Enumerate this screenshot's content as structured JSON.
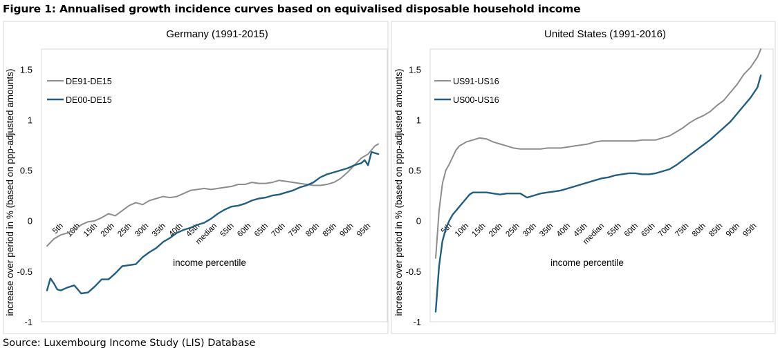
{
  "figure_title": "Figure 1: Annualised growth incidence curves based on equivalised disposable household income",
  "source": "Source: Luxembourg Income Study (LIS) Database",
  "colors": {
    "series_old": "#8c8c8c",
    "series_new": "#1f5f82",
    "frame": "#d9d9d9"
  },
  "chart_data": [
    {
      "type": "line",
      "title": "Germany (1991-2015)",
      "xlabel": "income percentile",
      "ylabel": "increase over period in % (based on ppp-adjusted amounts)",
      "ylim": [
        -1,
        1.7
      ],
      "yticks": [
        -1,
        -0.5,
        0,
        0.5,
        1,
        1.5
      ],
      "ytick_labels": [
        "-1",
        "-0.5",
        "0",
        "0.5",
        "1",
        "1.5"
      ],
      "xlim": [
        1,
        99
      ],
      "xticks": [
        5,
        10,
        15,
        20,
        25,
        30,
        35,
        40,
        45,
        50,
        55,
        60,
        65,
        70,
        75,
        80,
        85,
        90,
        95
      ],
      "xtick_labels": [
        "5th",
        "10th",
        "15th",
        "20th",
        "25th",
        "30th",
        "35th",
        "40th",
        "45th",
        "median",
        "55th",
        "60th",
        "65th",
        "70th",
        "75th",
        "80th",
        "85th",
        "90th",
        "95th"
      ],
      "legend": "top-left",
      "grid": false,
      "series": [
        {
          "name": "DE91-DE15",
          "color": "#8c8c8c",
          "points": [
            [
              1,
              -0.25
            ],
            [
              3,
              -0.18
            ],
            [
              5,
              -0.14
            ],
            [
              7,
              -0.12
            ],
            [
              9,
              -0.09
            ],
            [
              11,
              -0.04
            ],
            [
              13,
              -0.01
            ],
            [
              15,
              0.0
            ],
            [
              17,
              0.03
            ],
            [
              19,
              0.07
            ],
            [
              21,
              0.05
            ],
            [
              23,
              0.1
            ],
            [
              25,
              0.15
            ],
            [
              27,
              0.18
            ],
            [
              29,
              0.16
            ],
            [
              31,
              0.2
            ],
            [
              33,
              0.22
            ],
            [
              35,
              0.24
            ],
            [
              37,
              0.23
            ],
            [
              39,
              0.24
            ],
            [
              41,
              0.27
            ],
            [
              43,
              0.3
            ],
            [
              45,
              0.31
            ],
            [
              47,
              0.32
            ],
            [
              49,
              0.31
            ],
            [
              51,
              0.32
            ],
            [
              53,
              0.33
            ],
            [
              55,
              0.34
            ],
            [
              57,
              0.36
            ],
            [
              59,
              0.36
            ],
            [
              61,
              0.38
            ],
            [
              63,
              0.37
            ],
            [
              65,
              0.37
            ],
            [
              67,
              0.38
            ],
            [
              69,
              0.4
            ],
            [
              71,
              0.39
            ],
            [
              73,
              0.38
            ],
            [
              75,
              0.37
            ],
            [
              77,
              0.36
            ],
            [
              79,
              0.35
            ],
            [
              81,
              0.35
            ],
            [
              83,
              0.36
            ],
            [
              85,
              0.38
            ],
            [
              87,
              0.42
            ],
            [
              89,
              0.48
            ],
            [
              91,
              0.55
            ],
            [
              93,
              0.62
            ],
            [
              95,
              0.66
            ],
            [
              97,
              0.74
            ],
            [
              98,
              0.76
            ]
          ]
        },
        {
          "name": "DE00-DE15",
          "color": "#1f5f82",
          "points": [
            [
              1,
              -0.69
            ],
            [
              2,
              -0.57
            ],
            [
              3,
              -0.62
            ],
            [
              4,
              -0.68
            ],
            [
              5,
              -0.69
            ],
            [
              7,
              -0.66
            ],
            [
              9,
              -0.64
            ],
            [
              11,
              -0.72
            ],
            [
              13,
              -0.71
            ],
            [
              15,
              -0.65
            ],
            [
              17,
              -0.58
            ],
            [
              19,
              -0.58
            ],
            [
              21,
              -0.52
            ],
            [
              23,
              -0.45
            ],
            [
              25,
              -0.44
            ],
            [
              27,
              -0.43
            ],
            [
              29,
              -0.36
            ],
            [
              31,
              -0.31
            ],
            [
              33,
              -0.27
            ],
            [
              35,
              -0.21
            ],
            [
              37,
              -0.17
            ],
            [
              39,
              -0.12
            ],
            [
              41,
              -0.09
            ],
            [
              43,
              -0.07
            ],
            [
              45,
              -0.04
            ],
            [
              47,
              -0.02
            ],
            [
              49,
              0.02
            ],
            [
              51,
              0.07
            ],
            [
              53,
              0.11
            ],
            [
              55,
              0.14
            ],
            [
              57,
              0.15
            ],
            [
              59,
              0.17
            ],
            [
              61,
              0.2
            ],
            [
              63,
              0.22
            ],
            [
              65,
              0.23
            ],
            [
              67,
              0.25
            ],
            [
              69,
              0.26
            ],
            [
              71,
              0.28
            ],
            [
              73,
              0.3
            ],
            [
              75,
              0.33
            ],
            [
              77,
              0.35
            ],
            [
              79,
              0.38
            ],
            [
              81,
              0.43
            ],
            [
              83,
              0.46
            ],
            [
              85,
              0.48
            ],
            [
              87,
              0.5
            ],
            [
              89,
              0.52
            ],
            [
              91,
              0.55
            ],
            [
              93,
              0.57
            ],
            [
              94,
              0.6
            ],
            [
              95,
              0.55
            ],
            [
              96,
              0.68
            ],
            [
              98,
              0.66
            ]
          ]
        }
      ]
    },
    {
      "type": "line",
      "title": "United States (1991-2016)",
      "xlabel": "income percentile",
      "ylabel": "increase over period in % (based on ppp-adjusted amounts)",
      "ylim": [
        -1,
        1.7
      ],
      "yticks": [
        -1,
        -0.5,
        0,
        0.5,
        1,
        1.5
      ],
      "ytick_labels": [
        "-1",
        "-0.5",
        "0",
        "0.5",
        "1",
        "1.5"
      ],
      "xlim": [
        1,
        99
      ],
      "xticks": [
        5,
        10,
        15,
        20,
        25,
        30,
        35,
        40,
        45,
        50,
        55,
        60,
        65,
        70,
        75,
        80,
        85,
        90,
        95
      ],
      "xtick_labels": [
        "5th",
        "10th",
        "15th",
        "20th",
        "25th",
        "30th",
        "35th",
        "40th",
        "45th",
        "median",
        "55th",
        "60th",
        "65th",
        "70th",
        "75th",
        "80th",
        "85th",
        "90th",
        "95th"
      ],
      "legend": "top-left",
      "grid": false,
      "series": [
        {
          "name": "US91-US16",
          "color": "#8c8c8c",
          "points": [
            [
              1,
              -0.37
            ],
            [
              2,
              0.1
            ],
            [
              3,
              0.37
            ],
            [
              4,
              0.5
            ],
            [
              5,
              0.56
            ],
            [
              6,
              0.63
            ],
            [
              7,
              0.7
            ],
            [
              8,
              0.74
            ],
            [
              10,
              0.78
            ],
            [
              12,
              0.8
            ],
            [
              14,
              0.82
            ],
            [
              16,
              0.81
            ],
            [
              18,
              0.78
            ],
            [
              20,
              0.76
            ],
            [
              22,
              0.74
            ],
            [
              24,
              0.72
            ],
            [
              26,
              0.71
            ],
            [
              28,
              0.71
            ],
            [
              30,
              0.71
            ],
            [
              32,
              0.71
            ],
            [
              34,
              0.72
            ],
            [
              36,
              0.72
            ],
            [
              38,
              0.72
            ],
            [
              40,
              0.73
            ],
            [
              42,
              0.74
            ],
            [
              44,
              0.75
            ],
            [
              46,
              0.76
            ],
            [
              48,
              0.78
            ],
            [
              50,
              0.79
            ],
            [
              52,
              0.79
            ],
            [
              54,
              0.79
            ],
            [
              56,
              0.79
            ],
            [
              58,
              0.79
            ],
            [
              60,
              0.79
            ],
            [
              62,
              0.8
            ],
            [
              64,
              0.8
            ],
            [
              66,
              0.8
            ],
            [
              68,
              0.82
            ],
            [
              70,
              0.84
            ],
            [
              72,
              0.88
            ],
            [
              74,
              0.92
            ],
            [
              76,
              0.97
            ],
            [
              78,
              1.01
            ],
            [
              80,
              1.04
            ],
            [
              82,
              1.08
            ],
            [
              84,
              1.14
            ],
            [
              86,
              1.19
            ],
            [
              88,
              1.27
            ],
            [
              90,
              1.35
            ],
            [
              92,
              1.45
            ],
            [
              94,
              1.52
            ],
            [
              96,
              1.62
            ],
            [
              97,
              1.7
            ]
          ]
        },
        {
          "name": "US00-US16",
          "color": "#1f5f82",
          "points": [
            [
              1,
              -0.9
            ],
            [
              2,
              -0.45
            ],
            [
              3,
              -0.2
            ],
            [
              4,
              -0.08
            ],
            [
              5,
              0.0
            ],
            [
              6,
              0.06
            ],
            [
              7,
              0.1
            ],
            [
              8,
              0.14
            ],
            [
              9,
              0.18
            ],
            [
              10,
              0.22
            ],
            [
              11,
              0.26
            ],
            [
              12,
              0.28
            ],
            [
              14,
              0.28
            ],
            [
              16,
              0.28
            ],
            [
              18,
              0.27
            ],
            [
              20,
              0.26
            ],
            [
              22,
              0.27
            ],
            [
              24,
              0.27
            ],
            [
              26,
              0.27
            ],
            [
              28,
              0.23
            ],
            [
              30,
              0.25
            ],
            [
              32,
              0.27
            ],
            [
              34,
              0.28
            ],
            [
              36,
              0.29
            ],
            [
              38,
              0.3
            ],
            [
              40,
              0.32
            ],
            [
              42,
              0.34
            ],
            [
              44,
              0.36
            ],
            [
              46,
              0.38
            ],
            [
              48,
              0.4
            ],
            [
              50,
              0.42
            ],
            [
              52,
              0.43
            ],
            [
              54,
              0.45
            ],
            [
              56,
              0.46
            ],
            [
              58,
              0.47
            ],
            [
              60,
              0.47
            ],
            [
              62,
              0.46
            ],
            [
              64,
              0.46
            ],
            [
              66,
              0.47
            ],
            [
              68,
              0.49
            ],
            [
              70,
              0.51
            ],
            [
              72,
              0.55
            ],
            [
              74,
              0.6
            ],
            [
              76,
              0.65
            ],
            [
              78,
              0.7
            ],
            [
              80,
              0.75
            ],
            [
              82,
              0.8
            ],
            [
              84,
              0.86
            ],
            [
              86,
              0.92
            ],
            [
              88,
              0.98
            ],
            [
              90,
              1.06
            ],
            [
              92,
              1.14
            ],
            [
              94,
              1.22
            ],
            [
              96,
              1.32
            ],
            [
              97,
              1.44
            ]
          ]
        }
      ]
    }
  ]
}
